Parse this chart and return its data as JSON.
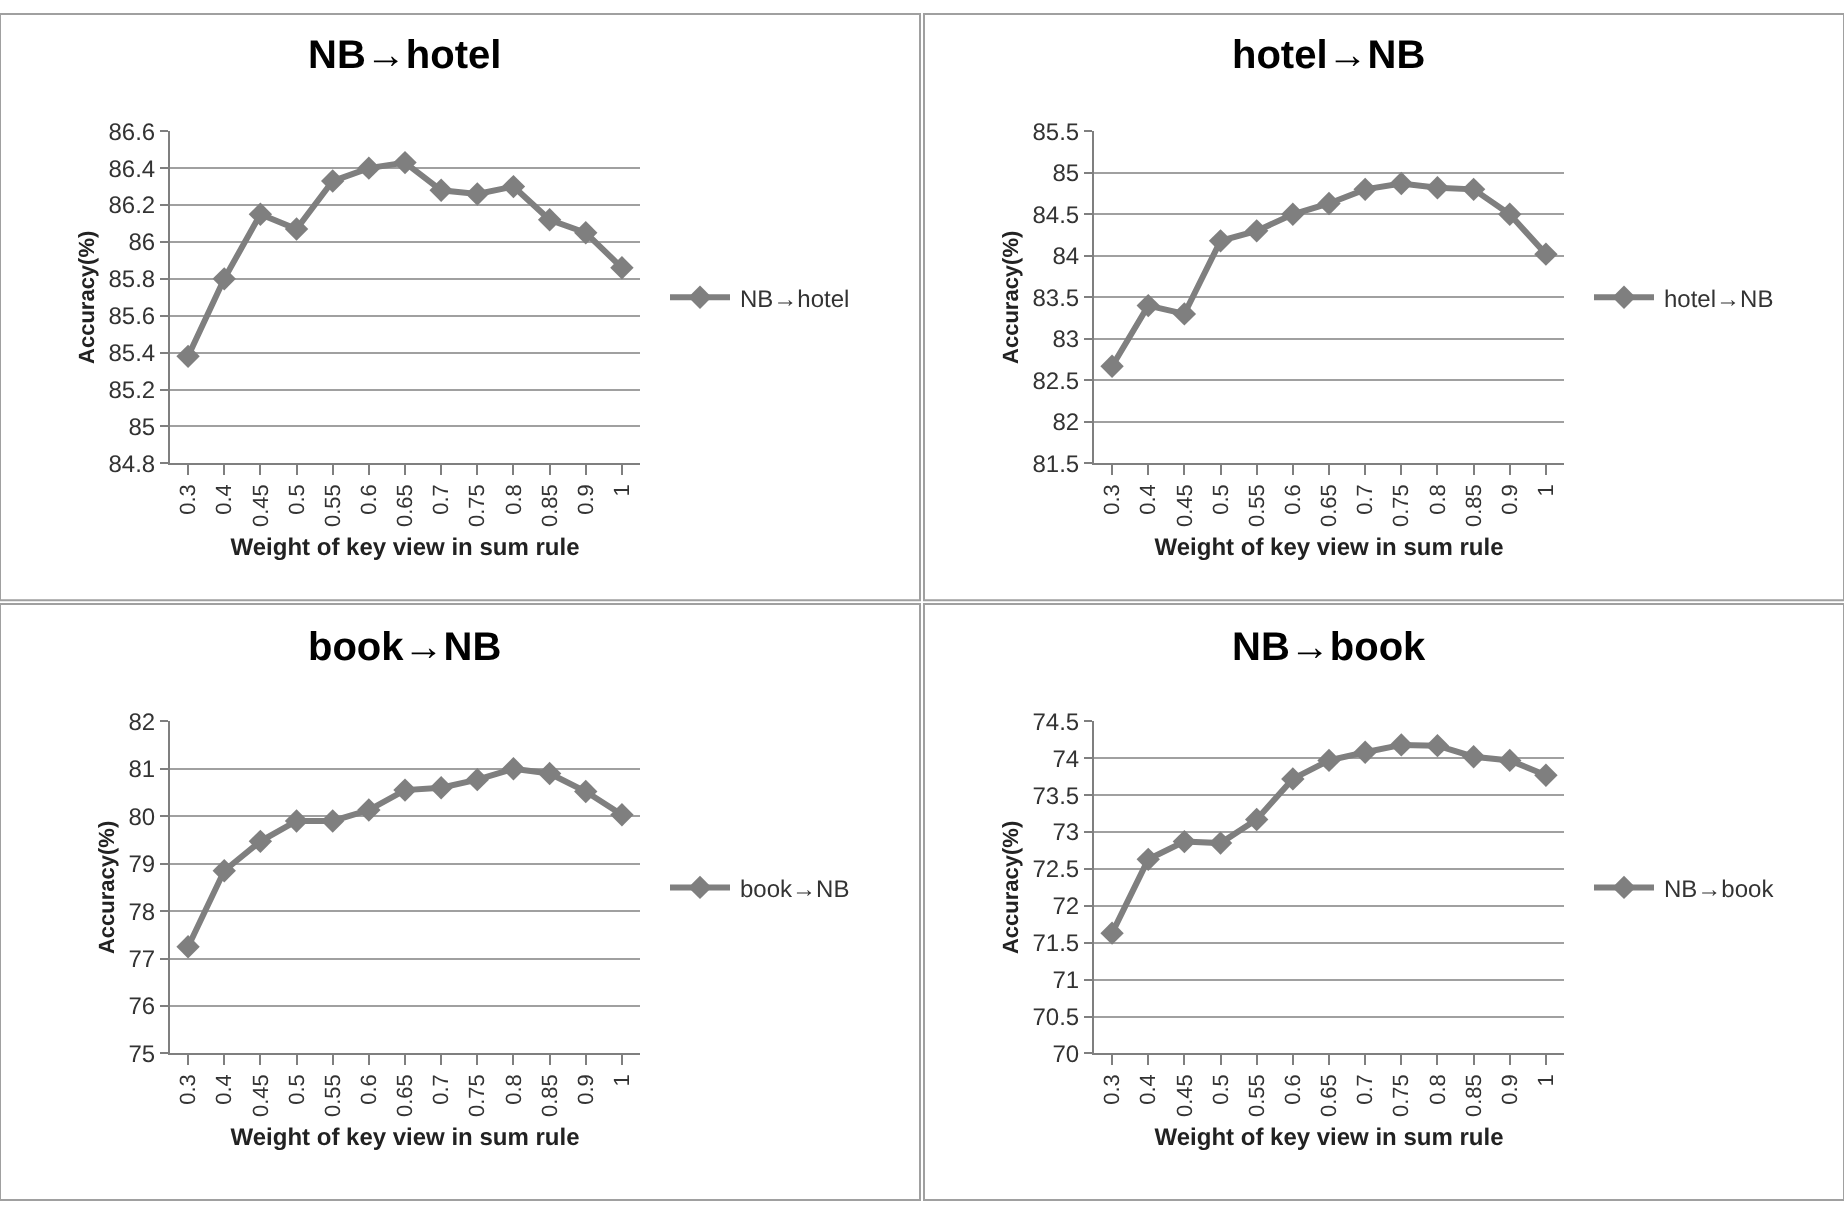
{
  "chart_data": [
    {
      "type": "line",
      "title": "NB→hotel",
      "xlabel": "Weight of key view in sum rule",
      "ylabel": "Accuracy(%)",
      "categories": [
        "0.3",
        "0.4",
        "0.45",
        "0.5",
        "0.55",
        "0.6",
        "0.65",
        "0.7",
        "0.75",
        "0.8",
        "0.85",
        "0.9",
        "1"
      ],
      "series": [
        {
          "name": "NB→hotel",
          "color": "#7f7f7f",
          "values": [
            85.38,
            85.8,
            86.15,
            86.07,
            86.33,
            86.4,
            86.43,
            86.28,
            86.26,
            86.3,
            86.12,
            86.05,
            85.86
          ]
        }
      ],
      "ylim": [
        84.8,
        86.6
      ],
      "yticks": [
        84.8,
        85,
        85.2,
        85.4,
        85.6,
        85.8,
        86,
        86.2,
        86.4,
        86.6
      ],
      "grid": "y",
      "legend": "right",
      "marker": "diamond",
      "line_style": "solid"
    },
    {
      "type": "line",
      "title": "hotel→NB",
      "xlabel": "Weight of key view in sum rule",
      "ylabel": "Accuracy(%)",
      "categories": [
        "0.3",
        "0.4",
        "0.45",
        "0.5",
        "0.55",
        "0.6",
        "0.65",
        "0.7",
        "0.75",
        "0.8",
        "0.85",
        "0.9",
        "1"
      ],
      "series": [
        {
          "name": "hotel→NB",
          "color": "#7f7f7f",
          "values": [
            82.67,
            83.4,
            83.3,
            84.18,
            84.3,
            84.5,
            84.63,
            84.8,
            84.87,
            84.82,
            84.8,
            84.5,
            84.02
          ]
        }
      ],
      "ylim": [
        81.5,
        85.5
      ],
      "yticks": [
        81.5,
        82,
        82.5,
        83,
        83.5,
        84,
        84.5,
        85,
        85.5
      ],
      "grid": "y",
      "legend": "right",
      "marker": "diamond",
      "line_style": "solid"
    },
    {
      "type": "line",
      "title": "book→NB",
      "xlabel": "Weight of key view in sum rule",
      "ylabel": "Accuracy(%)",
      "categories": [
        "0.3",
        "0.4",
        "0.45",
        "0.5",
        "0.55",
        "0.6",
        "0.65",
        "0.7",
        "0.75",
        "0.8",
        "0.85",
        "0.9",
        "1"
      ],
      "series": [
        {
          "name": "book→NB",
          "color": "#7f7f7f",
          "values": [
            77.25,
            78.85,
            79.47,
            79.9,
            79.9,
            80.13,
            80.55,
            80.6,
            80.77,
            81.0,
            80.9,
            80.52,
            80.03
          ]
        }
      ],
      "ylim": [
        75,
        82
      ],
      "yticks": [
        75,
        76,
        77,
        78,
        79,
        80,
        81,
        82
      ],
      "grid": "y",
      "legend": "right",
      "marker": "diamond",
      "line_style": "solid"
    },
    {
      "type": "line",
      "title": "NB→book",
      "xlabel": "Weight of key view in sum rule",
      "ylabel": "Accuracy(%)",
      "categories": [
        "0.3",
        "0.4",
        "0.45",
        "0.5",
        "0.55",
        "0.6",
        "0.65",
        "0.7",
        "0.75",
        "0.8",
        "0.85",
        "0.9",
        "1"
      ],
      "series": [
        {
          "name": "NB→book",
          "color": "#7f7f7f",
          "values": [
            71.63,
            72.63,
            72.87,
            72.85,
            73.17,
            73.72,
            73.97,
            74.08,
            74.18,
            74.17,
            74.02,
            73.97,
            73.77
          ]
        }
      ],
      "ylim": [
        70,
        74.5
      ],
      "yticks": [
        70,
        70.5,
        71,
        71.5,
        72,
        72.5,
        73,
        73.5,
        74,
        74.5
      ],
      "grid": "y",
      "legend": "right",
      "marker": "diamond",
      "line_style": "solid"
    }
  ]
}
